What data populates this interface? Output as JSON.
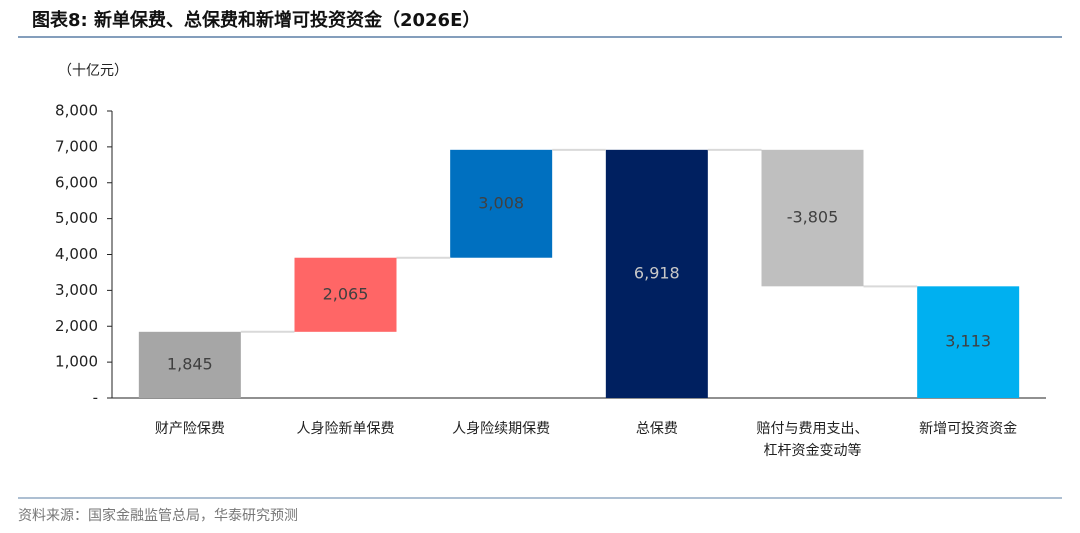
{
  "header": {
    "title": "图表8:  新单保费、总保费和新增可投资资金（2026E）"
  },
  "chart_data": {
    "type": "waterfall",
    "y_axis_label": "（十亿元）",
    "categories": [
      "财产险保费",
      "人身险新单保费",
      "人身险续期保费",
      "总保费",
      "赔付与费用支出、\n杠杆资金变动等",
      "新增可投资资金"
    ],
    "values": [
      1845,
      2065,
      3008,
      6918,
      -3805,
      3113
    ],
    "value_labels": [
      "1,845",
      "2,065",
      "3,008",
      "6,918",
      "-3,805",
      "3,113"
    ],
    "colors": [
      "#a6a6a6",
      "#ff6666",
      "#0070c0",
      "#002060",
      "#bfbfbf",
      "#00b0f0"
    ],
    "connector_color": "#d9d9d9",
    "ylim": [
      0,
      8000
    ],
    "yticks": [
      {
        "value": 0,
        "label": "-"
      },
      {
        "value": 1000,
        "label": "1,000"
      },
      {
        "value": 2000,
        "label": "2,000"
      },
      {
        "value": 3000,
        "label": "3,000"
      },
      {
        "value": 4000,
        "label": "4,000"
      },
      {
        "value": 5000,
        "label": "5,000"
      },
      {
        "value": 6000,
        "label": "6,000"
      },
      {
        "value": 7000,
        "label": "7,000"
      },
      {
        "value": 8000,
        "label": "8,000"
      }
    ]
  },
  "footer": {
    "source": "资料来源：国家金融监管总局，华泰研究预测"
  }
}
